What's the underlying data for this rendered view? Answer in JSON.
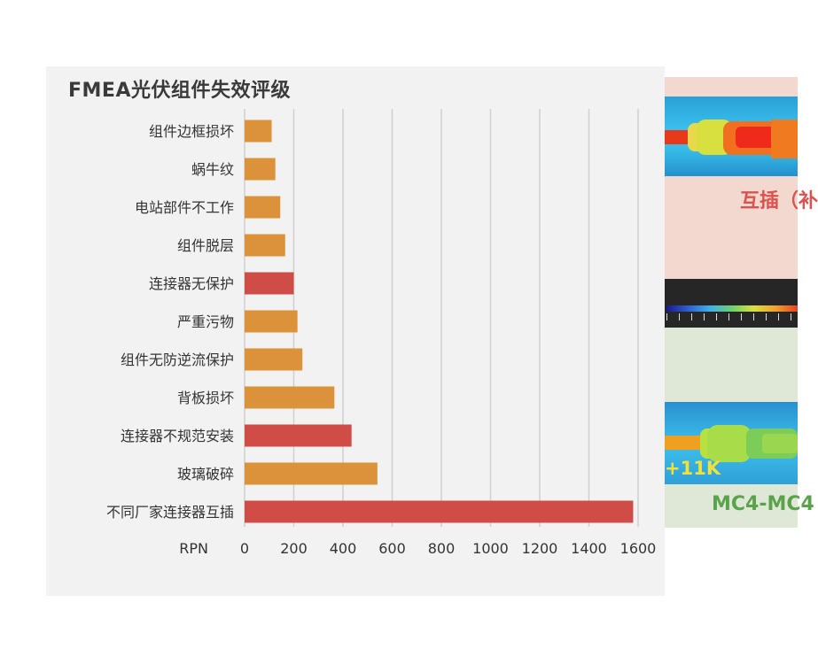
{
  "chart_data": {
    "type": "bar",
    "orientation": "horizontal",
    "title": "FMEA光伏组件失效评级",
    "xlabel": "RPN",
    "xlim": [
      0,
      1600
    ],
    "xticks": [
      0,
      200,
      400,
      600,
      800,
      1000,
      1200,
      1400,
      1600
    ],
    "grid": true,
    "categories": [
      "组件边框损坏",
      "蜗牛纹",
      "电站部件不工作",
      "组件脱层",
      "连接器无保护",
      "严重污物",
      "组件无防逆流保护",
      "背板损坏",
      "连接器不规范安装",
      "玻璃破碎",
      "不同厂家连接器互插"
    ],
    "values": [
      110,
      125,
      145,
      165,
      200,
      215,
      235,
      365,
      435,
      540,
      1580
    ],
    "highlight": [
      false,
      false,
      false,
      false,
      true,
      false,
      false,
      false,
      true,
      false,
      true
    ],
    "colors": {
      "normal": "#dc923a",
      "highlight": "#d04d47"
    }
  },
  "right_panel": {
    "caption_top": "互插（补",
    "caption_bottom": "MC4-MC4",
    "temp_label": "+11K"
  }
}
